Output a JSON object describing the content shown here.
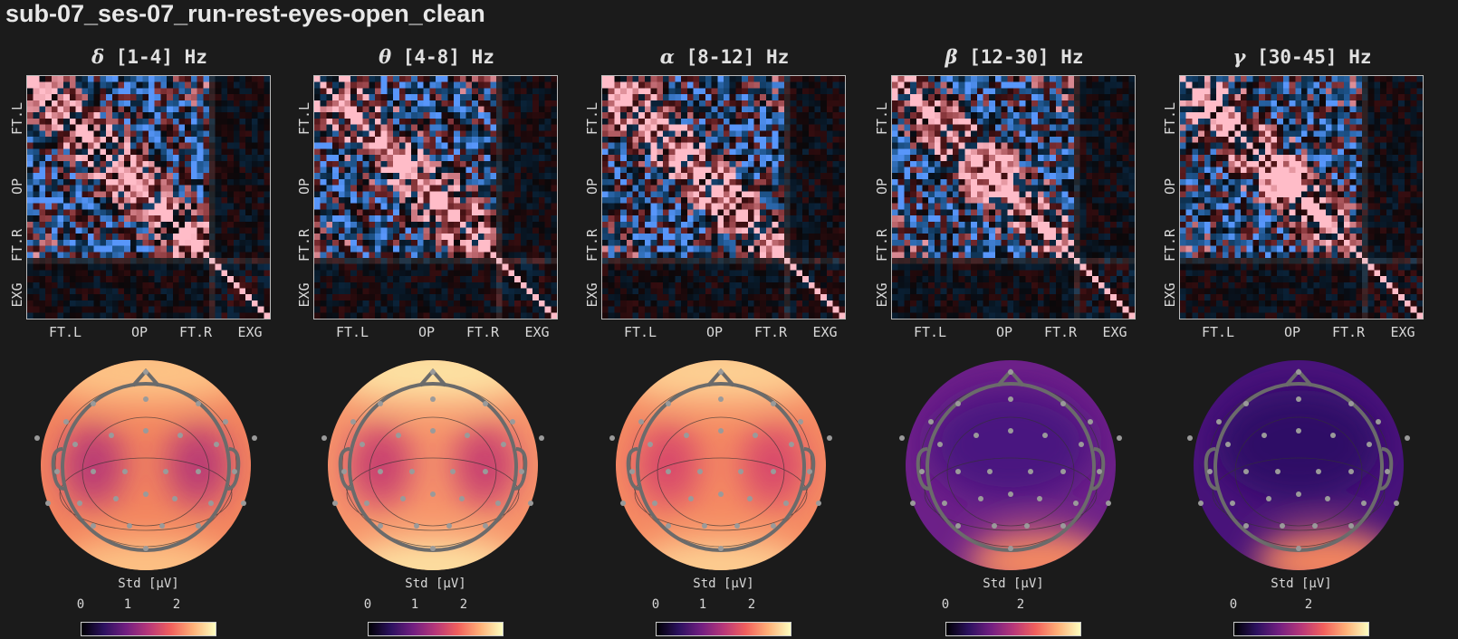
{
  "title": "sub-07_ses-07_run-rest-eyes-open_clean",
  "chart_data": [
    {
      "type": "heatmap+topomap",
      "band_symbol": "δ",
      "band_range": "[1-4] Hz",
      "row_labels": [
        "FT.L",
        "OP",
        "FT.R",
        "EXG"
      ],
      "col_labels": [
        "FT.L",
        "OP",
        "FT.R",
        "EXG"
      ],
      "colorbar_label": "Std [μV]",
      "colorbar_ticks": [
        "0",
        "1",
        "2"
      ],
      "colormap": "magma",
      "topo_base": "#f3845e",
      "topo_low": "#b93a74",
      "topo_high": "#fdc486"
    },
    {
      "type": "heatmap+topomap",
      "band_symbol": "θ",
      "band_range": "[4-8] Hz",
      "row_labels": [
        "FT.L",
        "OP",
        "FT.R",
        "EXG"
      ],
      "col_labels": [
        "FT.L",
        "OP",
        "FT.R",
        "EXG"
      ],
      "colorbar_label": "Std [μV]",
      "colorbar_ticks": [
        "0",
        "1",
        "2"
      ],
      "colormap": "magma",
      "topo_base": "#f7946a",
      "topo_low": "#c8406f",
      "topo_high": "#fde2a3"
    },
    {
      "type": "heatmap+topomap",
      "band_symbol": "α",
      "band_range": "[8-12] Hz",
      "row_labels": [
        "FT.L",
        "OP",
        "FT.R",
        "EXG"
      ],
      "col_labels": [
        "FT.L",
        "OP",
        "FT.R",
        "EXG"
      ],
      "colorbar_label": "Std [μV]",
      "colorbar_ticks": [
        "0",
        "1",
        "2"
      ],
      "colormap": "magma",
      "topo_base": "#f58a62",
      "topo_low": "#d8496a",
      "topo_high": "#fdd093"
    },
    {
      "type": "heatmap+topomap",
      "band_symbol": "β",
      "band_range": "[12-30] Hz",
      "row_labels": [
        "FT.L",
        "OP",
        "FT.R",
        "EXG"
      ],
      "col_labels": [
        "FT.L",
        "OP",
        "FT.R",
        "EXG"
      ],
      "colorbar_label": "Std [μV]",
      "colorbar_ticks": [
        "0",
        "2"
      ],
      "colormap": "magma",
      "topo_base": "#6c2088",
      "topo_low": "#4a1680",
      "topo_high": "#f58a62"
    },
    {
      "type": "heatmap+topomap",
      "band_symbol": "γ",
      "band_range": "[30-45] Hz",
      "row_labels": [
        "FT.L",
        "OP",
        "FT.R",
        "EXG"
      ],
      "col_labels": [
        "FT.L",
        "OP",
        "FT.R",
        "EXG"
      ],
      "colorbar_label": "Std [μV]",
      "colorbar_ticks": [
        "0",
        "2"
      ],
      "colormap": "magma",
      "topo_base": "#48137a",
      "topo_low": "#2f0f66",
      "topo_high": "#f5875f"
    }
  ]
}
